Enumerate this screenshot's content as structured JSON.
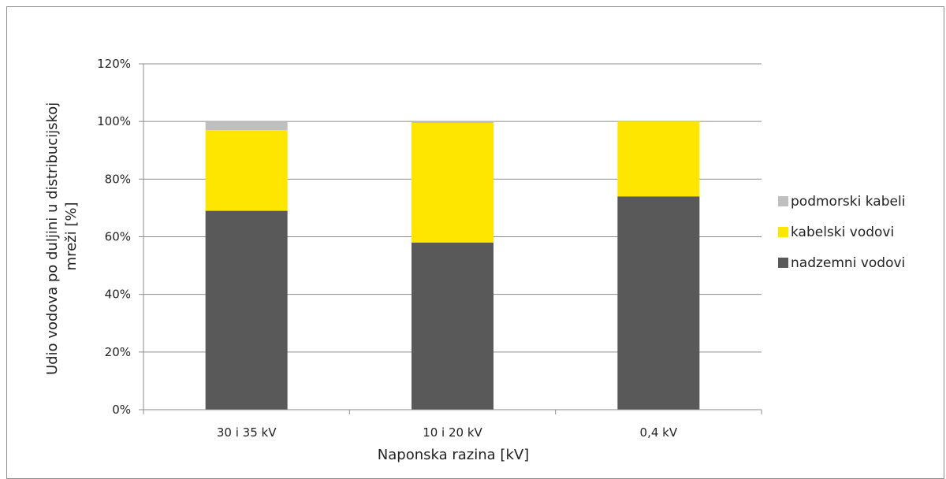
{
  "chart_data": {
    "type": "bar",
    "stacked": true,
    "title": "",
    "xlabel": "Naponska razina [kV]",
    "ylabel_lines": [
      "Udio vodova po duljini u distribucijskoj",
      "mreži [%]"
    ],
    "categories": [
      "30 i 35 kV",
      "10 i 20 kV",
      "0,4 kV"
    ],
    "ylim": [
      0,
      120
    ],
    "y_ticks": [
      0,
      20,
      40,
      60,
      80,
      100,
      120
    ],
    "y_tick_labels": [
      "0%",
      "20%",
      "40%",
      "60%",
      "80%",
      "100%",
      "120%"
    ],
    "grid": true,
    "legend_position": "right",
    "series": [
      {
        "name": "nadzemni vodovi",
        "color": "#595959",
        "values": [
          69,
          58,
          74
        ]
      },
      {
        "name": "kabelski vodovi",
        "color": "#ffe600",
        "values": [
          28,
          41.5,
          26
        ]
      },
      {
        "name": "podmorski kabeli",
        "color": "#bfbfbf",
        "values": [
          3,
          0.5,
          0
        ]
      }
    ],
    "legend_order": [
      "podmorski kabeli",
      "kabelski vodovi",
      "nadzemni vodovi"
    ]
  }
}
